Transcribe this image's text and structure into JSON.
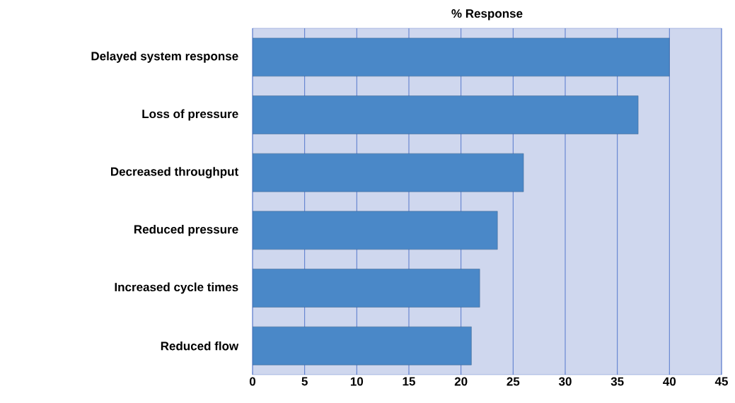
{
  "chart_data": {
    "type": "bar",
    "orientation": "horizontal",
    "title": "% Response",
    "categories": [
      "Delayed system response",
      "Loss of pressure",
      "Decreased throughput",
      "Reduced pressure",
      "Increased cycle times",
      "Reduced flow"
    ],
    "values": [
      40,
      37,
      26,
      23.5,
      21.8,
      21
    ],
    "color": "#4a88c8",
    "xlim": [
      0,
      45
    ],
    "xticks": [
      0,
      5,
      10,
      15,
      20,
      25,
      30,
      35,
      40,
      45
    ],
    "grid": "x"
  }
}
